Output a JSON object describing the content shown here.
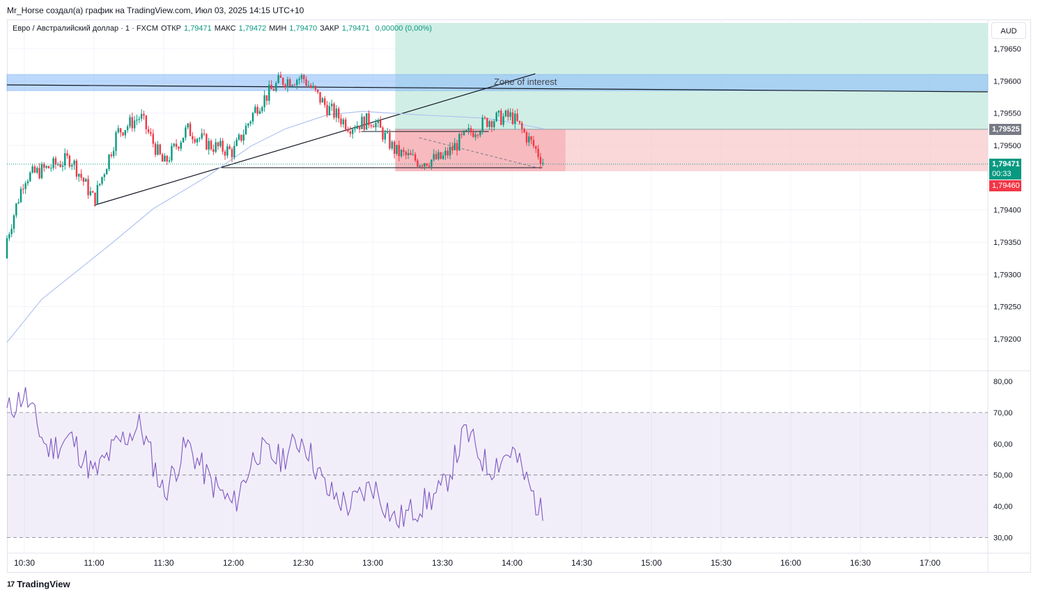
{
  "header": {
    "credit": "Mr_Horse создал(а) график на TradingView.com, Июл 03, 2025 14:15 UTC+10"
  },
  "legend": {
    "symbol": "Евро / Австралийский доллар · 1 · FXCM",
    "open_label": "ОТКР",
    "open_value": "1,79471",
    "high_label": "МАКС",
    "high_value": "1,79472",
    "low_label": "МИН",
    "low_value": "1,79470",
    "close_label": "ЗАКР",
    "close_value": "1,79471",
    "change": "0,00000 (0,00%)"
  },
  "currency": "AUD",
  "price_axis": {
    "ticks": [
      "1,79650",
      "1,79600",
      "1,79550",
      "1,79500",
      "1,79400",
      "1,79350",
      "1,79300",
      "1,79250",
      "1,79200"
    ],
    "badge_target": "1,79525",
    "badge_price": "1,79471",
    "badge_timer": "00:33",
    "badge_stop": "1,79460"
  },
  "rsi_axis": {
    "ticks": [
      "80,00",
      "70,00",
      "60,00",
      "50,00",
      "40,00",
      "30,00"
    ]
  },
  "time_axis": {
    "ticks": [
      "10:30",
      "11:00",
      "11:30",
      "12:00",
      "12:30",
      "13:00",
      "13:30",
      "14:00",
      "14:30",
      "15:00",
      "15:30",
      "16:00",
      "16:30",
      "17:00"
    ]
  },
  "annotations": {
    "zone_label": "Zone of interest"
  },
  "colors": {
    "up": "#089981",
    "down": "#f23645",
    "ma": "#b2c3f0",
    "rsi": "#7e57c2",
    "zone": "#90bff9",
    "target_zone": "#c8ebe0",
    "stop_zone": "#f9cdd0"
  },
  "footer": {
    "brand": "TradingView"
  },
  "chart_data": [
    {
      "type": "candlestick",
      "series": [
        {
          "name": "",
          "x": [
            "10:20",
            "10:30",
            "10:40",
            "10:50",
            "11:00",
            "11:10",
            "11:20",
            "11:30",
            "11:40",
            "11:50",
            "12:00",
            "12:10",
            "12:20",
            "12:30",
            "12:40",
            "12:50",
            "13:00",
            "13:10",
            "13:20",
            "13:30",
            "13:40",
            "13:50",
            "14:00",
            "14:10",
            "14:14"
          ],
          "close": [
            1.79325,
            1.7945,
            1.79465,
            1.7948,
            1.79415,
            1.7952,
            1.79545,
            1.7947,
            1.79525,
            1.795,
            1.7949,
            1.7956,
            1.796,
            1.79605,
            1.7956,
            1.7953,
            1.7954,
            1.7949,
            1.79475,
            1.7948,
            1.79515,
            1.7954,
            1.79545,
            1.79495,
            1.79471
          ]
        }
      ],
      "ylim": [
        1.7917,
        1.7968
      ],
      "xlabel": "",
      "ylabel": "",
      "overlays": {
        "zone_of_interest": [
          1.79585,
          1.7961
        ],
        "target_zone": [
          1.79525,
          1.7969
        ],
        "stop_zone": [
          1.7946,
          1.79525
        ],
        "current_price": 1.79471
      }
    },
    {
      "type": "line",
      "name": "RSI",
      "x": [
        "10:20",
        "10:30",
        "10:40",
        "10:50",
        "11:00",
        "11:10",
        "11:20",
        "11:30",
        "11:40",
        "11:50",
        "12:00",
        "12:10",
        "12:20",
        "12:30",
        "12:40",
        "12:50",
        "13:00",
        "13:10",
        "13:20",
        "13:30",
        "13:40",
        "13:50",
        "14:00",
        "14:10",
        "14:14"
      ],
      "values": [
        68,
        76,
        58,
        62,
        50,
        60,
        66,
        44,
        60,
        48,
        40,
        58,
        55,
        62,
        45,
        40,
        47,
        35,
        40,
        45,
        64,
        52,
        58,
        42,
        35
      ],
      "ylim": [
        28,
        84
      ],
      "levels": [
        70,
        50,
        30
      ]
    }
  ]
}
